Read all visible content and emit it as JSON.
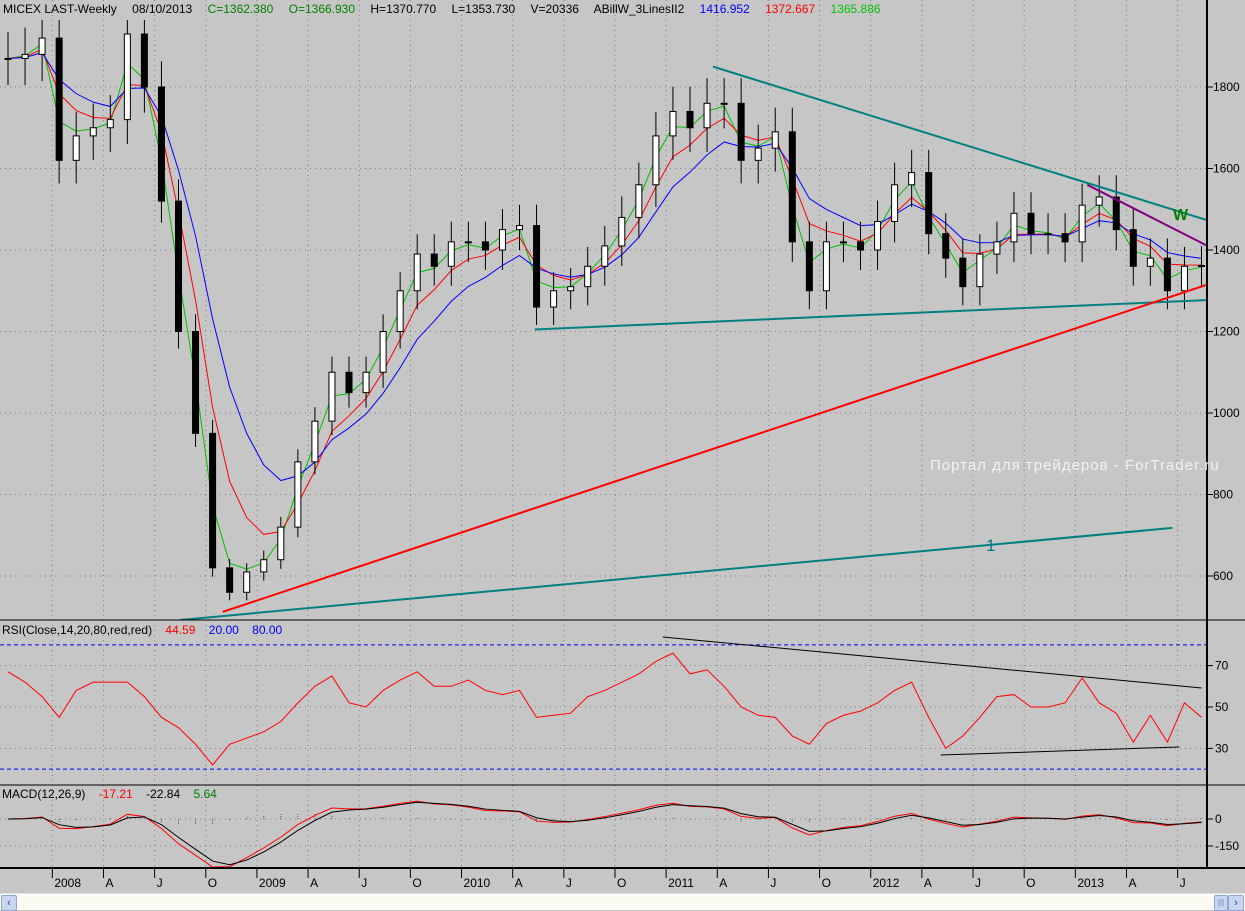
{
  "header": {
    "symbol": "MICEX LAST-Weekly",
    "date": "08/10/2013",
    "close": "C=1362.380",
    "open": "O=1366.930",
    "high": "H=1370.770",
    "low": "L=1353.730",
    "volume": "V=20336",
    "indicator": "ABillW_3LinesII2",
    "ind_blue": "1416.952",
    "ind_red": "1372.667",
    "ind_green": "1365.886"
  },
  "rsi_panel": {
    "title": "RSI(Close,14,20,80,red,red)",
    "value": "44.59",
    "low": "20.00",
    "high": "80.00"
  },
  "macd_panel": {
    "title": "MACD(12,26,9)",
    "macd": "-17.21",
    "signal": "-22.84",
    "hist": "5.64"
  },
  "watermark": "Портал для трейдеров - ForTrader.ru",
  "annotations": {
    "wave_1": "1",
    "wave_w": "W"
  },
  "colors": {
    "bg": "#c6c6c6",
    "teal": "#008080",
    "red": "#ff0000",
    "purple": "#800080",
    "green": "#00c000",
    "blue": "#0000ff"
  },
  "scrollbar": {
    "left": "‹",
    "right": "›",
    "thumb": "|||"
  },
  "chart_data": {
    "type": "candlestick",
    "title": "MICEX LAST-Weekly",
    "x_start": "2007-10",
    "x_step": "month",
    "x_labels": [
      {
        "m": 2.6,
        "t": "2008"
      },
      {
        "m": 5.6,
        "t": "A"
      },
      {
        "m": 8.6,
        "t": "J"
      },
      {
        "m": 11.6,
        "t": "O"
      },
      {
        "m": 14.6,
        "t": "2009"
      },
      {
        "m": 17.6,
        "t": "A"
      },
      {
        "m": 20.6,
        "t": "J"
      },
      {
        "m": 23.6,
        "t": "O"
      },
      {
        "m": 26.6,
        "t": "2010"
      },
      {
        "m": 29.6,
        "t": "A"
      },
      {
        "m": 32.6,
        "t": "J"
      },
      {
        "m": 35.6,
        "t": "O"
      },
      {
        "m": 38.6,
        "t": "2011"
      },
      {
        "m": 41.6,
        "t": "A"
      },
      {
        "m": 44.6,
        "t": "J"
      },
      {
        "m": 47.6,
        "t": "O"
      },
      {
        "m": 50.6,
        "t": "2012"
      },
      {
        "m": 53.6,
        "t": "A"
      },
      {
        "m": 56.6,
        "t": "J"
      },
      {
        "m": 59.6,
        "t": "O"
      },
      {
        "m": 62.6,
        "t": "2013"
      },
      {
        "m": 65.6,
        "t": "A"
      },
      {
        "m": 68.6,
        "t": "J"
      }
    ],
    "price_ticks": [
      "1800",
      "1600",
      "1400",
      "1200",
      "1000",
      "800",
      "600"
    ],
    "rsi_ticks": [
      "70",
      "50",
      "30"
    ],
    "macd_ticks": [
      "0",
      "-150"
    ],
    "close": [
      1870,
      1880,
      1920,
      1620,
      1680,
      1700,
      1720,
      1930,
      1800,
      1520,
      1200,
      950,
      620,
      560,
      610,
      640,
      720,
      880,
      980,
      1100,
      1050,
      1100,
      1200,
      1300,
      1390,
      1360,
      1420,
      1420,
      1400,
      1450,
      1460,
      1260,
      1300,
      1310,
      1360,
      1410,
      1480,
      1560,
      1680,
      1740,
      1700,
      1760,
      1760,
      1620,
      1650,
      1690,
      1420,
      1300,
      1420,
      1420,
      1400,
      1470,
      1560,
      1590,
      1440,
      1380,
      1310,
      1390,
      1420,
      1490,
      1440,
      1440,
      1420,
      1510,
      1530,
      1450,
      1360,
      1380,
      1300,
      1360,
      1362
    ],
    "rsi": [
      67,
      62,
      55,
      45,
      58,
      62,
      62,
      62,
      55,
      45,
      40,
      32,
      22,
      32,
      35,
      38,
      43,
      52,
      60,
      65,
      52,
      50,
      58,
      63,
      67,
      60,
      60,
      63,
      58,
      56,
      58,
      45,
      46,
      47,
      55,
      58,
      62,
      66,
      72,
      76,
      66,
      68,
      60,
      50,
      46,
      45,
      36,
      32,
      42,
      46,
      48,
      52,
      58,
      62,
      45,
      30,
      36,
      45,
      55,
      56,
      50,
      50,
      52,
      64,
      52,
      47,
      33,
      46,
      33,
      52,
      45
    ],
    "trendlines": [
      {
        "name": "resistance-teal",
        "color": "#008080",
        "p1": [
          41.35,
          1850
        ],
        "p2": [
          70.26,
          1474
        ]
      },
      {
        "name": "support-teal",
        "color": "#008080",
        "p1": [
          30.9,
          1205
        ],
        "p2": [
          70.26,
          1277
        ]
      },
      {
        "name": "support-red",
        "color": "#ff0000",
        "p1": [
          12.6,
          512
        ],
        "p2": [
          70.26,
          1314
        ]
      },
      {
        "name": "wave-1-line",
        "color": "#008080",
        "p1": [
          10.1,
          492
        ],
        "p2": [
          68.3,
          718
        ]
      },
      {
        "name": "resistance-purple",
        "color": "#800080",
        "p1": [
          63.3,
          1560
        ],
        "p2": [
          70.26,
          1412
        ]
      }
    ],
    "rsi_trendlines": [
      {
        "p1": [
          38.4,
          83.8
        ],
        "p2": [
          70.0,
          59.2
        ]
      },
      {
        "p1": [
          54.7,
          26.8
        ],
        "p2": [
          68.7,
          30.7
        ]
      }
    ]
  }
}
